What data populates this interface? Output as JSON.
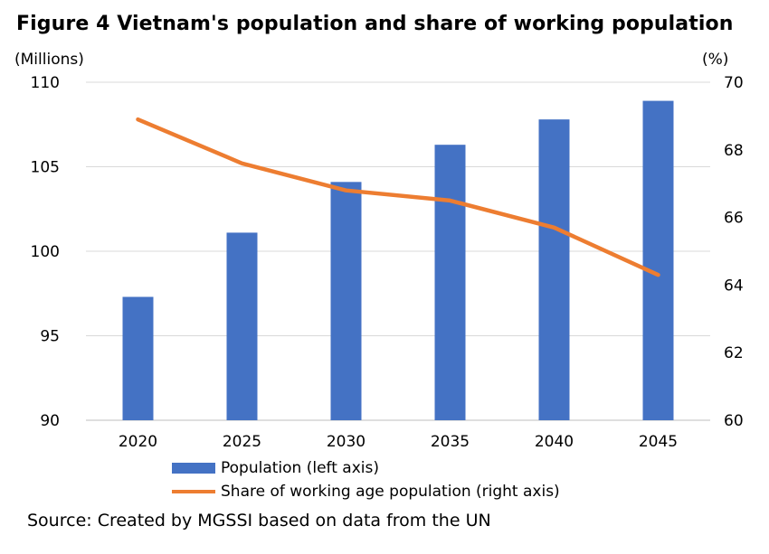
{
  "title": "Figure 4  Vietnam's population and share of working population",
  "source": "Source: Created by MGSSI based on data from the UN",
  "colors": {
    "population": "#4472C4",
    "share": "#ED7D31",
    "grid": "#d9d9d9"
  },
  "chart_data": {
    "type": "bar",
    "categories": [
      "2020",
      "2025",
      "2030",
      "2035",
      "2040",
      "2045"
    ],
    "series": [
      {
        "name": "Population (left axis)",
        "type": "bar",
        "axis": "left",
        "values": [
          97.3,
          101.1,
          104.1,
          106.3,
          107.8,
          108.9
        ]
      },
      {
        "name": "Share of working age population (right axis)",
        "type": "line",
        "axis": "right",
        "values": [
          68.9,
          67.6,
          66.8,
          66.5,
          65.7,
          64.3
        ]
      }
    ],
    "left_axis": {
      "unit_label": "(Millions)",
      "ylim": [
        90,
        110
      ],
      "ticks": [
        "90",
        "95",
        "100",
        "105",
        "110"
      ]
    },
    "right_axis": {
      "unit_label": "(%)",
      "ylim": [
        60,
        70
      ],
      "ticks": [
        "60",
        "62",
        "64",
        "66",
        "68",
        "70"
      ]
    },
    "grid": true,
    "legend_position": "bottom"
  }
}
